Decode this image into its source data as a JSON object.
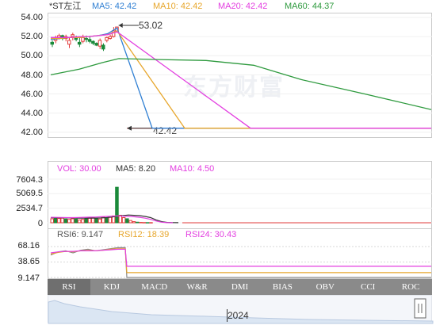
{
  "header": {
    "name": "*ST左江",
    "ma_items": [
      {
        "label": "MA5: 42.42",
        "color": "#2f7fd3"
      },
      {
        "label": "MA10: 42.42",
        "color": "#e7a62b"
      },
      {
        "label": "MA20: 42.42",
        "color": "#e33fe0"
      },
      {
        "label": "MA60: 44.37",
        "color": "#2e9a3e"
      }
    ]
  },
  "watermark": "东方财富",
  "price_panel": {
    "y_ticks": [
      "54.00",
      "52.00",
      "50.00",
      "48.00",
      "46.00",
      "44.00",
      "42.00"
    ],
    "y_tick_values": [
      54,
      52,
      50,
      48,
      46,
      44,
      42
    ],
    "ylim": [
      41.9,
      54.0
    ],
    "high_annotation": "53.02",
    "low_annotation": "42.42"
  },
  "vol_panel": {
    "legend": [
      {
        "label": "VOL: 30.00",
        "color": "#e33fe0"
      },
      {
        "label": "MA5: 8.20",
        "color": "#333333"
      },
      {
        "label": "MA10: 4.50",
        "color": "#e33fe0"
      }
    ],
    "y_ticks": [
      "7604.3",
      "5069.5",
      "2534.7",
      "0"
    ],
    "y_tick_values": [
      7604.3,
      5069.5,
      2534.7,
      0
    ]
  },
  "rsi_panel": {
    "legend": [
      {
        "label": "RSI6: 9.147",
        "color": "#555555"
      },
      {
        "label": "RSI12: 18.39",
        "color": "#e7a62b"
      },
      {
        "label": "RSI24: 30.43",
        "color": "#e33fe0"
      }
    ],
    "y_ticks": [
      "68.16",
      "38.65",
      "9.147"
    ],
    "y_tick_values": [
      68.16,
      38.65,
      9.147
    ]
  },
  "tabs": [
    "RSI",
    "KDJ",
    "MACD",
    "W&R",
    "DMI",
    "BIAS",
    "OBV",
    "CCI",
    "ROC"
  ],
  "active_tab": "RSI",
  "navigator": {
    "year_label": "2024"
  },
  "chart_data": [
    {
      "type": "candlestick",
      "title": "*ST左江",
      "ylim": [
        41.9,
        54.0
      ],
      "candles": [
        {
          "o": 51.4,
          "c": 51.2,
          "h": 51.6,
          "l": 50.9
        },
        {
          "o": 51.6,
          "c": 51.9,
          "h": 52.1,
          "l": 51.3
        },
        {
          "o": 51.9,
          "c": 52.1,
          "h": 52.3,
          "l": 51.7
        },
        {
          "o": 52.1,
          "c": 51.8,
          "h": 52.2,
          "l": 51.6
        },
        {
          "o": 51.8,
          "c": 52.0,
          "h": 52.2,
          "l": 51.5
        },
        {
          "o": 51.2,
          "c": 51.6,
          "h": 51.9,
          "l": 50.8
        },
        {
          "o": 52.0,
          "c": 52.2,
          "h": 52.4,
          "l": 51.6
        },
        {
          "o": 51.9,
          "c": 51.7,
          "h": 52.1,
          "l": 51.5
        },
        {
          "o": 51.4,
          "c": 51.2,
          "h": 52.0,
          "l": 50.9
        },
        {
          "o": 51.5,
          "c": 51.9,
          "h": 52.2,
          "l": 51.3
        },
        {
          "o": 51.8,
          "c": 51.7,
          "h": 52.1,
          "l": 51.4
        },
        {
          "o": 51.7,
          "c": 51.5,
          "h": 52.0,
          "l": 51.3
        },
        {
          "o": 51.5,
          "c": 51.3,
          "h": 51.6,
          "l": 51.1
        },
        {
          "o": 51.3,
          "c": 51.1,
          "h": 51.4,
          "l": 51.0
        },
        {
          "o": 51.0,
          "c": 51.6,
          "h": 51.8,
          "l": 50.7
        },
        {
          "o": 51.1,
          "c": 50.7,
          "h": 51.3,
          "l": 50.5
        },
        {
          "o": 51.6,
          "c": 51.9,
          "h": 52.0,
          "l": 51.4
        },
        {
          "o": 51.8,
          "c": 52.0,
          "h": 52.2,
          "l": 51.7
        },
        {
          "o": 52.0,
          "c": 52.6,
          "h": 53.0,
          "l": 51.9
        },
        {
          "o": 52.5,
          "c": 53.0,
          "h": 53.02,
          "l": 52.4
        }
      ],
      "flat_value": 42.42,
      "flat_days": 78,
      "series": [
        {
          "name": "MA5",
          "color": "#2f7fd3",
          "values": [
            51.7,
            51.8,
            51.9,
            51.9,
            52.0,
            52.1,
            52.3,
            52.9,
            42.42
          ]
        },
        {
          "name": "MA10",
          "color": "#e7a62b",
          "values": [
            51.8,
            51.8,
            51.9,
            51.9,
            52.0,
            52.1,
            52.2,
            52.6,
            42.42
          ]
        },
        {
          "name": "MA20",
          "color": "#e33fe0",
          "values": [
            51.9,
            51.9,
            51.9,
            52.0,
            52.0,
            52.1,
            52.2,
            52.5,
            42.42
          ]
        },
        {
          "name": "MA60",
          "color": "#2e9a3e",
          "values": [
            48.0,
            48.6,
            49.3,
            49.7,
            49.6,
            49.5,
            49.0,
            47.5,
            46.0,
            44.37
          ]
        }
      ]
    },
    {
      "type": "bar",
      "title": "VOL",
      "ylim": [
        0,
        7604.3
      ],
      "values": [
        700,
        900,
        750,
        800,
        650,
        600,
        700,
        650,
        500,
        600,
        750,
        800,
        900,
        700,
        650,
        1000,
        850,
        950,
        1200,
        6200,
        1300,
        900,
        700,
        400,
        200,
        100,
        60,
        40,
        30,
        30
      ],
      "ma5": [
        900,
        880,
        870,
        860,
        850,
        820,
        800,
        810,
        820,
        850,
        900,
        1000,
        1150,
        1250,
        1350,
        1300,
        1250,
        1100,
        900,
        500,
        200,
        60,
        30,
        8.2
      ],
      "ma10": [
        950,
        940,
        920,
        900,
        900,
        920,
        950,
        980,
        1000,
        1050,
        1100,
        1150,
        1200,
        1150,
        1100,
        1050,
        950,
        800,
        600,
        300,
        100,
        20,
        4.5
      ]
    },
    {
      "type": "line",
      "title": "RSI",
      "ylim": [
        9.147,
        68.16
      ],
      "series": [
        {
          "name": "RSI6",
          "color": "#888888",
          "values": [
            52,
            58,
            60,
            56,
            61,
            63,
            60,
            62,
            64,
            66,
            66,
            9.147
          ]
        },
        {
          "name": "RSI12",
          "color": "#e7a62b",
          "values": [
            54,
            57,
            59,
            58,
            60,
            61,
            60,
            61,
            63,
            64,
            64,
            18.39
          ]
        },
        {
          "name": "RSI24",
          "color": "#e33fe0",
          "values": [
            56,
            58,
            59,
            59,
            60,
            60,
            60,
            61,
            62,
            63,
            63,
            30.43
          ]
        }
      ]
    }
  ]
}
